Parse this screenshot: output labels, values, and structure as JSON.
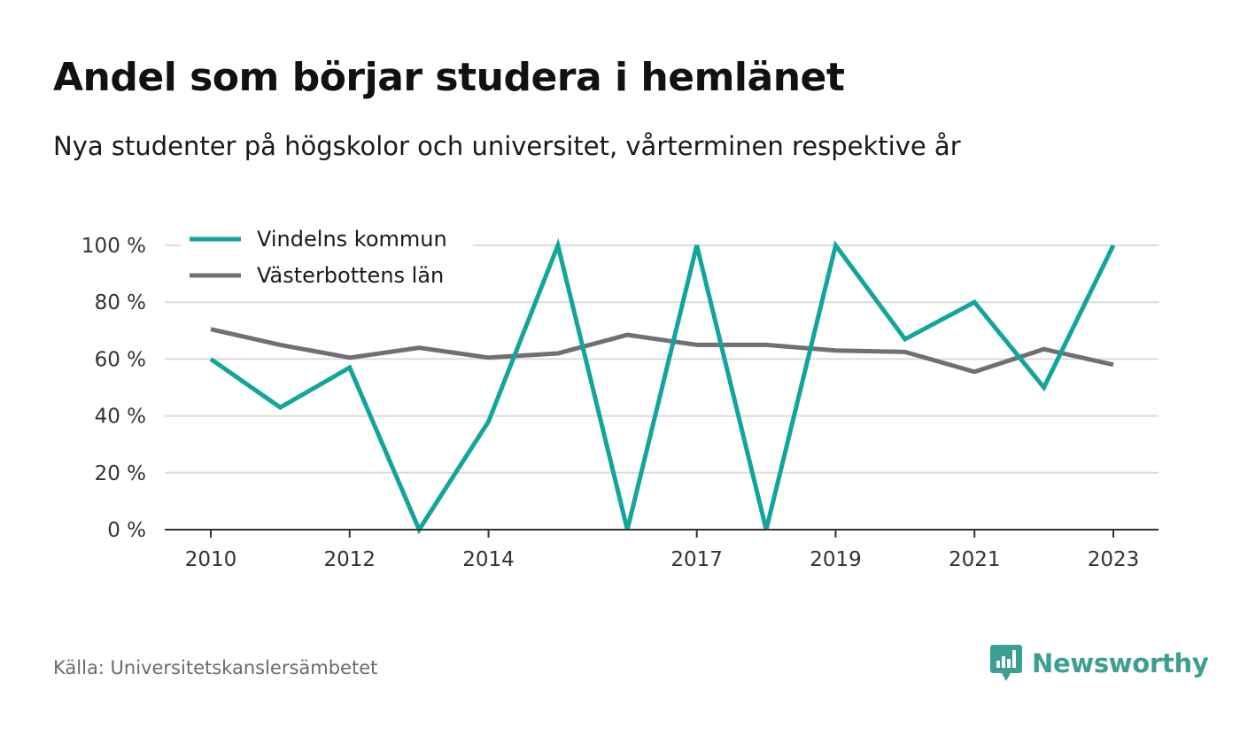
{
  "header": {
    "title": "Andel som börjar studera i hemlänet",
    "subtitle": "Nya studenter på högskolor och universitet, vårterminen respektive år"
  },
  "footer": {
    "source": "Källa: Universitetskanslersämbetet",
    "brand": "Newsworthy"
  },
  "colors": {
    "vindeln": "#12a59b",
    "vasterbotten": "#716f74",
    "grid": "#dcdcdc",
    "axis": "#333333",
    "brand": "#3c9f94"
  },
  "chart_data": {
    "type": "line",
    "x": [
      2010,
      2011,
      2012,
      2013,
      2014,
      2015,
      2016,
      2017,
      2018,
      2019,
      2020,
      2021,
      2022,
      2023
    ],
    "x_tick_labels": [
      "2010",
      "2012",
      "2014",
      "2017",
      "2019",
      "2021",
      "2023"
    ],
    "y_ticks": [
      0,
      20,
      40,
      60,
      80,
      100
    ],
    "y_tick_labels": [
      "0 %",
      "20 %",
      "40 %",
      "60 %",
      "80 %",
      "100 %"
    ],
    "ylim": [
      0,
      100
    ],
    "grid": true,
    "legend_position": "top-left",
    "series": [
      {
        "name": "Vindelns kommun",
        "color_key": "vindeln",
        "values": [
          60,
          43,
          57,
          0,
          38,
          100,
          0,
          100,
          0,
          100,
          67,
          80,
          50,
          100
        ]
      },
      {
        "name": "Västerbottens län",
        "color_key": "vasterbotten",
        "values": [
          70.5,
          65,
          60.5,
          64,
          60.5,
          62,
          68.5,
          65,
          65,
          63,
          62.5,
          55.5,
          63.5,
          58
        ]
      }
    ]
  }
}
